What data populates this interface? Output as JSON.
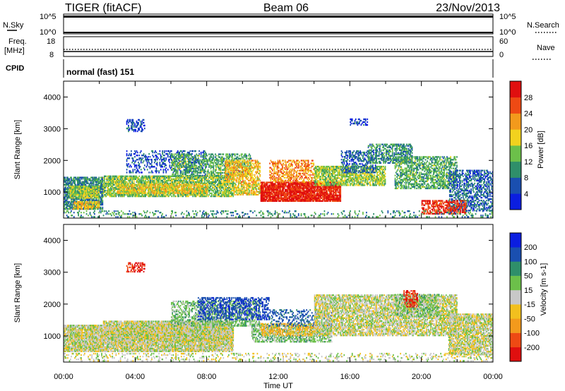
{
  "header": {
    "title": "TIGER (fitACF)",
    "beam": "Beam 06",
    "date": "23/Nov/2013"
  },
  "strips": {
    "nsky_label": "N.Sky",
    "nsky_ticks": [
      "10^5",
      "10^0"
    ],
    "nsearch_label": "N.Search",
    "nsearch_ticks": [
      "10^5",
      "10^0"
    ],
    "freq_label_1": "Freq.",
    "freq_label_2": "[MHz]",
    "freq_ticks": [
      "18",
      "8"
    ],
    "nave_label": "Nave",
    "nave_ticks": [
      "60",
      "0"
    ],
    "cpid_label": "CPID",
    "cpid_text": "normal (fast) 151"
  },
  "chart_data": [
    {
      "type": "heatmap",
      "panel": "power",
      "ylabel": "Slant Range [km]",
      "yticks": [
        "4000",
        "3000",
        "2000",
        "1000"
      ],
      "ylim": [
        180,
        4500
      ],
      "xlim": [
        0,
        24
      ],
      "colorbar": {
        "label": "Power [dB]",
        "ticks": [
          "28",
          "24",
          "20",
          "16",
          "12",
          "8",
          "4"
        ],
        "range": [
          0,
          32
        ],
        "colors": [
          "#0b1ee0",
          "#1a4fb0",
          "#2f8f6a",
          "#6cc04a",
          "#f2d21e",
          "#f39a1c",
          "#ee4a14",
          "#e00f0f"
        ]
      },
      "regions": [
        {
          "t0": 0.0,
          "t1": 2.2,
          "r0": 450,
          "r1": 1450,
          "v": 9,
          "d": 0.75
        },
        {
          "t0": 0.3,
          "t1": 2.0,
          "r0": 800,
          "r1": 1200,
          "v": 15,
          "d": 0.8
        },
        {
          "t0": 0.5,
          "t1": 2.0,
          "r0": 450,
          "r1": 700,
          "v": 19,
          "d": 0.7
        },
        {
          "t0": 2.2,
          "t1": 9.5,
          "r0": 850,
          "r1": 1500,
          "v": 14,
          "d": 0.75
        },
        {
          "t0": 3.0,
          "t1": 8.0,
          "r0": 950,
          "r1": 1250,
          "v": 19,
          "d": 0.6
        },
        {
          "t0": 3.5,
          "t1": 8.0,
          "r0": 1600,
          "r1": 2300,
          "v": 5,
          "d": 0.3
        },
        {
          "t0": 6.0,
          "t1": 10.5,
          "r0": 1500,
          "r1": 2200,
          "v": 12,
          "d": 0.5
        },
        {
          "t0": 9.0,
          "t1": 11.0,
          "r0": 1300,
          "r1": 2000,
          "v": 20,
          "d": 0.55
        },
        {
          "t0": 9.5,
          "t1": 11.0,
          "r0": 900,
          "r1": 1300,
          "v": 18,
          "d": 0.7
        },
        {
          "t0": 11.0,
          "t1": 15.5,
          "r0": 700,
          "r1": 1300,
          "v": 29,
          "d": 0.9
        },
        {
          "t0": 11.5,
          "t1": 14.0,
          "r0": 1300,
          "r1": 2000,
          "v": 23,
          "d": 0.45
        },
        {
          "t0": 14.0,
          "t1": 18.0,
          "r0": 1200,
          "r1": 1800,
          "v": 15,
          "d": 0.7
        },
        {
          "t0": 15.5,
          "t1": 17.5,
          "r0": 1600,
          "r1": 2300,
          "v": 7,
          "d": 0.45
        },
        {
          "t0": 17.0,
          "t1": 19.5,
          "r0": 1900,
          "r1": 2500,
          "v": 10,
          "d": 0.55
        },
        {
          "t0": 18.5,
          "t1": 22.0,
          "r0": 1100,
          "r1": 2100,
          "v": 12,
          "d": 0.55
        },
        {
          "t0": 21.5,
          "t1": 24.0,
          "r0": 400,
          "r1": 1700,
          "v": 7,
          "d": 0.5
        },
        {
          "t0": 20.0,
          "t1": 22.5,
          "r0": 300,
          "r1": 750,
          "v": 28,
          "d": 0.55
        },
        {
          "t0": 3.5,
          "t1": 4.5,
          "r0": 2900,
          "r1": 3300,
          "v": 5,
          "d": 0.4
        },
        {
          "t0": 16.0,
          "t1": 17.0,
          "r0": 3100,
          "r1": 3300,
          "v": 4,
          "d": 0.4
        },
        {
          "t0": 0.0,
          "t1": 24.0,
          "r0": 200,
          "r1": 400,
          "v": 10,
          "d": 0.18
        }
      ]
    },
    {
      "type": "heatmap",
      "panel": "velocity",
      "ylabel": "Slant Range [km]",
      "yticks": [
        "4000",
        "3000",
        "2000",
        "1000"
      ],
      "ylim": [
        180,
        4500
      ],
      "xlim": [
        0,
        24
      ],
      "xlabel": "Time UT",
      "xticks": [
        "00:00",
        "04:00",
        "08:00",
        "12:00",
        "16:00",
        "20:00",
        "00:00"
      ],
      "colorbar": {
        "label": "Velocity [m s-1]",
        "ticks": [
          "200",
          "100",
          "50",
          "15",
          "-15",
          "-50",
          "-100",
          "-200"
        ],
        "colors": [
          "#0b1ee0",
          "#1a4fb0",
          "#2f8f6a",
          "#6cc04a",
          "#c8c8c8",
          "#f2c01e",
          "#f39a1c",
          "#ee4a14",
          "#e00f0f"
        ]
      },
      "regions": [
        {
          "t0": 0.0,
          "t1": 9.5,
          "r0": 500,
          "r1": 1350,
          "v": 0,
          "d": 0.9
        },
        {
          "t0": 2.2,
          "t1": 9.5,
          "r0": 850,
          "r1": 1450,
          "v": 0,
          "d": 0.85
        },
        {
          "t0": 6.0,
          "t1": 11.0,
          "r0": 1300,
          "r1": 2100,
          "v": 30,
          "d": 0.5
        },
        {
          "t0": 7.5,
          "t1": 11.5,
          "r0": 1500,
          "r1": 2200,
          "v": 180,
          "d": 0.45
        },
        {
          "t0": 10.5,
          "t1": 15.0,
          "r0": 800,
          "r1": 1350,
          "v": 30,
          "d": 0.6
        },
        {
          "t0": 11.0,
          "t1": 14.0,
          "r0": 1000,
          "r1": 1400,
          "v": -40,
          "d": 0.45
        },
        {
          "t0": 11.5,
          "t1": 15.0,
          "r0": 1300,
          "r1": 1800,
          "v": 120,
          "d": 0.25
        },
        {
          "t0": 14.0,
          "t1": 22.0,
          "r0": 1000,
          "r1": 2300,
          "v": 0,
          "d": 0.7
        },
        {
          "t0": 18.5,
          "t1": 21.0,
          "r0": 1600,
          "r1": 2300,
          "v": 30,
          "d": 0.45
        },
        {
          "t0": 21.5,
          "t1": 24.0,
          "r0": 400,
          "r1": 1700,
          "v": 0,
          "d": 0.75
        },
        {
          "t0": 3.5,
          "t1": 4.5,
          "r0": 3000,
          "r1": 3300,
          "v": -200,
          "d": 0.5
        },
        {
          "t0": 19.0,
          "t1": 19.8,
          "r0": 1900,
          "r1": 2400,
          "v": -200,
          "d": 0.5
        },
        {
          "t0": 0.0,
          "t1": 24.0,
          "r0": 200,
          "r1": 450,
          "v": 0,
          "d": 0.2
        }
      ]
    }
  ]
}
